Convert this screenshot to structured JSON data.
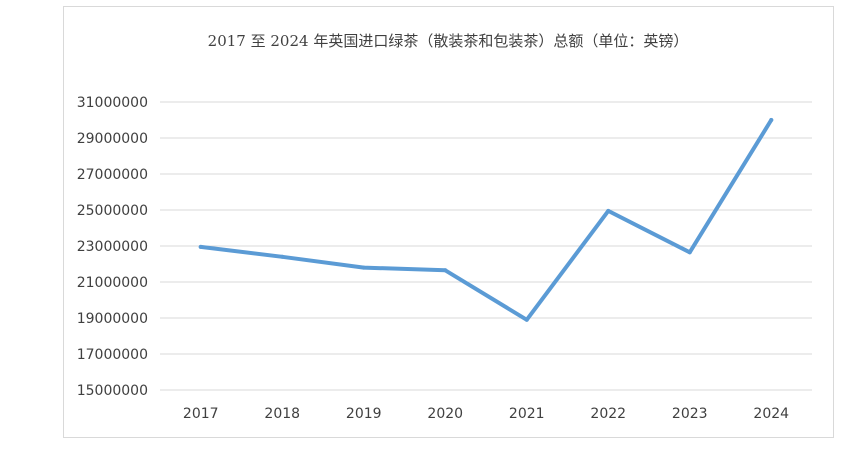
{
  "chart_data": {
    "type": "line",
    "title": "2017 至 2024 年英国进口绿茶（散装茶和包装茶）总额（单位：英镑）",
    "xlabel": "",
    "ylabel": "",
    "categories": [
      "2017",
      "2018",
      "2019",
      "2020",
      "2021",
      "2022",
      "2023",
      "2024"
    ],
    "series": [
      {
        "values": [
          22950000,
          22400000,
          21800000,
          21650000,
          18900000,
          24950000,
          22650000,
          30000000
        ],
        "color": "#5b9bd5"
      }
    ],
    "ylim": [
      15000000,
      31000000
    ],
    "yticks": [
      15000000,
      17000000,
      19000000,
      21000000,
      23000000,
      25000000,
      27000000,
      29000000,
      31000000
    ],
    "ytick_labels": [
      "15000000",
      "17000000",
      "19000000",
      "21000000",
      "23000000",
      "25000000",
      "27000000",
      "29000000",
      "31000000"
    ],
    "grid": true,
    "legend": "none"
  }
}
